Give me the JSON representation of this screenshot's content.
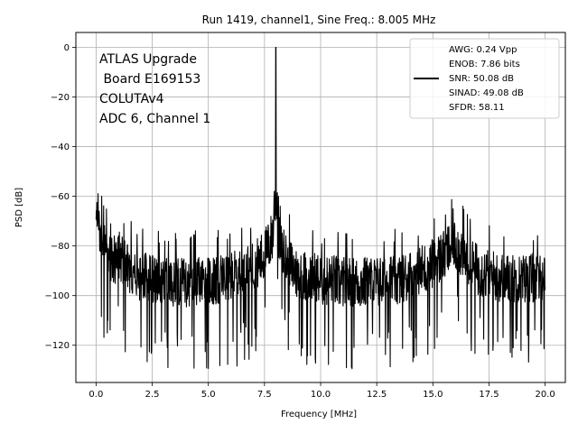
{
  "chart_data": {
    "type": "line",
    "title": "Run 1419, channel1, Sine Freq.: 8.005 MHz",
    "xlabel": "Frequency [MHz]",
    "ylabel": "PSD [dB]",
    "xlim": [
      -0.9,
      20.9
    ],
    "ylim": [
      -135,
      6
    ],
    "xticks": [
      0.0,
      2.5,
      5.0,
      7.5,
      10.0,
      12.5,
      15.0,
      17.5,
      20.0
    ],
    "xtick_labels": [
      "0.0",
      "2.5",
      "5.0",
      "7.5",
      "10.0",
      "12.5",
      "15.0",
      "17.5",
      "20.0"
    ],
    "yticks": [
      0,
      -20,
      -40,
      -60,
      -80,
      -100,
      -120
    ],
    "ytick_labels": [
      "0",
      "−20",
      "−40",
      "−60",
      "−80",
      "−100",
      "−120"
    ],
    "grid": true,
    "line_color": "#000000",
    "annotation": [
      "ATLAS Upgrade",
      " Board E169153",
      "COLUTAv4",
      "ADC 6, Channel 1"
    ],
    "legend": {
      "placement": "upper right",
      "entries": [
        "AWG: 0.24 Vpp",
        "ENOB: 7.86 bits",
        "SNR: 50.08 dB",
        "SINAD: 49.08 dB",
        "SFDR: 58.11"
      ]
    },
    "series": [
      {
        "x": [
          0.0,
          0.25,
          0.5,
          0.75,
          1.0,
          1.5,
          2.0,
          2.5,
          3.0,
          3.5,
          4.0,
          4.5,
          5.0,
          5.5,
          6.0,
          6.5,
          7.0,
          7.25,
          7.5,
          7.75,
          7.9,
          8.005,
          8.1,
          8.25,
          8.5,
          8.75,
          9.0,
          9.5,
          9.8,
          10.0,
          10.5,
          11.0,
          11.5,
          12.0,
          12.5,
          13.0,
          13.5,
          14.0,
          14.5,
          15.0,
          15.5,
          15.75,
          16.0,
          16.25,
          16.5,
          17.0,
          17.5,
          18.0,
          18.5,
          19.0,
          19.5,
          20.0
        ],
        "y": [
          -58,
          -76,
          -80,
          -83,
          -80,
          -86,
          -89,
          -89,
          -91,
          -91,
          -91,
          -90,
          -90,
          -90,
          -89,
          -87,
          -84,
          -83,
          -80,
          -75,
          -70,
          0,
          -70,
          -78,
          -82,
          -85,
          -88,
          -89,
          -89,
          -90,
          -90,
          -91,
          -91,
          -91,
          -91,
          -90,
          -90,
          -88,
          -86,
          -83,
          -80,
          -77,
          -76,
          -78,
          -82,
          -86,
          -88,
          -89,
          -90,
          -90,
          -89,
          -91
        ]
      }
    ]
  }
}
